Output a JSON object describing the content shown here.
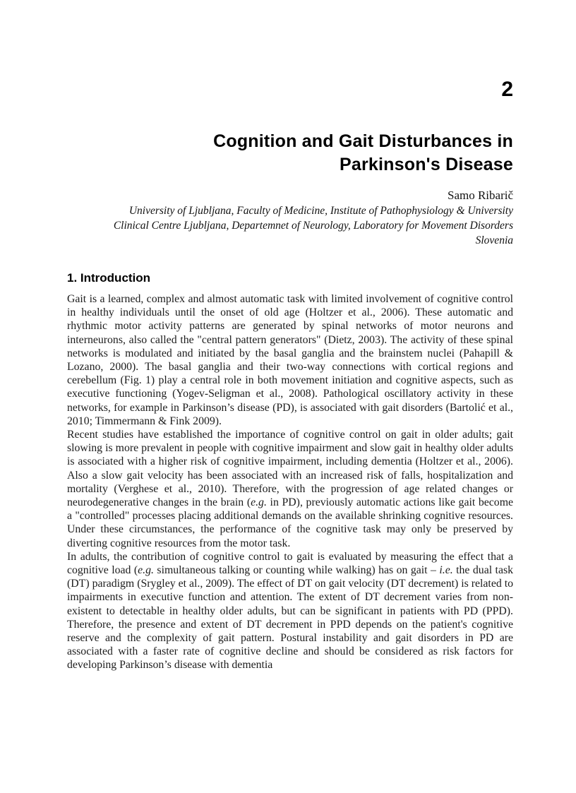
{
  "page_number": "2",
  "chapter": {
    "title_line1": "Cognition and Gait Disturbances in",
    "title_line2": "Parkinson's Disease",
    "author": "Samo Ribarič",
    "affiliation_lines": [
      "University of Ljubljana, Faculty of Medicine, Institute of Pathophysiology & University",
      "Clinical Centre Ljubljana, Departemnet of Neurology, Laboratory for Movement Disorders",
      "Slovenia"
    ]
  },
  "section": {
    "heading": "1. Introduction"
  },
  "paragraphs": [
    {
      "runs": [
        {
          "t": "Gait is a learned, complex and almost automatic task with limited involvement of cognitive control in healthy individuals until the onset of old age (Holtzer et al., 2006). These automatic and rhythmic motor activity patterns are generated by spinal networks of motor neurons and interneurons, also called the \"central pattern generators\" (Dietz, 2003). The activity of these spinal networks is modulated and initiated by the basal ganglia and the brainstem nuclei (Pahapill & Lozano, 2000). The basal ganglia and their two-way connections with cortical regions and cerebellum (Fig. 1) play a central role in both movement initiation and cognitive aspects, such as executive functioning (Yogev-Seligman et al., 2008). Pathological oscillatory activity in these networks, for example in Parkinson’s disease (PD), is associated with gait disorders (Bartolić et al., 2010; Timmermann & Fink 2009)."
        }
      ]
    },
    {
      "runs": [
        {
          "t": "Recent studies have established the importance of cognitive control on gait in older adults; gait slowing is more prevalent in people with cognitive impairment and slow gait in healthy older adults is associated with a higher risk of cognitive impairment, including dementia (Holtzer et al., 2006). Also a slow gait velocity has been associated with an increased risk of falls, hospitalization and mortality (Verghese et al., 2010). Therefore, with the progression of age related changes or neurodegenerative changes in the brain ("
        },
        {
          "t": "e.g.",
          "i": true
        },
        {
          "t": " in PD), previously automatic actions like gait become a \"controlled\" processes placing additional demands on the available shrinking cognitive resources. Under these circumstances, the performance of the cognitive task may only be preserved by diverting cognitive resources from the motor task."
        }
      ]
    },
    {
      "runs": [
        {
          "t": "In adults, the contribution of cognitive control to gait is evaluated by measuring the effect that a cognitive load ("
        },
        {
          "t": "e.g.",
          "i": true
        },
        {
          "t": " simultaneous talking or counting while walking) has on gait – "
        },
        {
          "t": "i.e.",
          "i": true
        },
        {
          "t": " the dual task (DT) paradigm (Srygley et al., 2009). The effect of DT on gait velocity (DT decrement) is related to impairments in executive function and attention. The extent of DT decrement varies from non-existent to detectable in healthy older adults, but can be significant in patients with PD (PPD). Therefore, the presence and extent of DT decrement in PPD depends on the patient's cognitive reserve and the complexity of gait pattern. Postural instability and gait disorders in PD are associated with a faster rate of cognitive decline and should be considered as risk factors for developing Parkinson’s disease with dementia"
        }
      ]
    }
  ]
}
